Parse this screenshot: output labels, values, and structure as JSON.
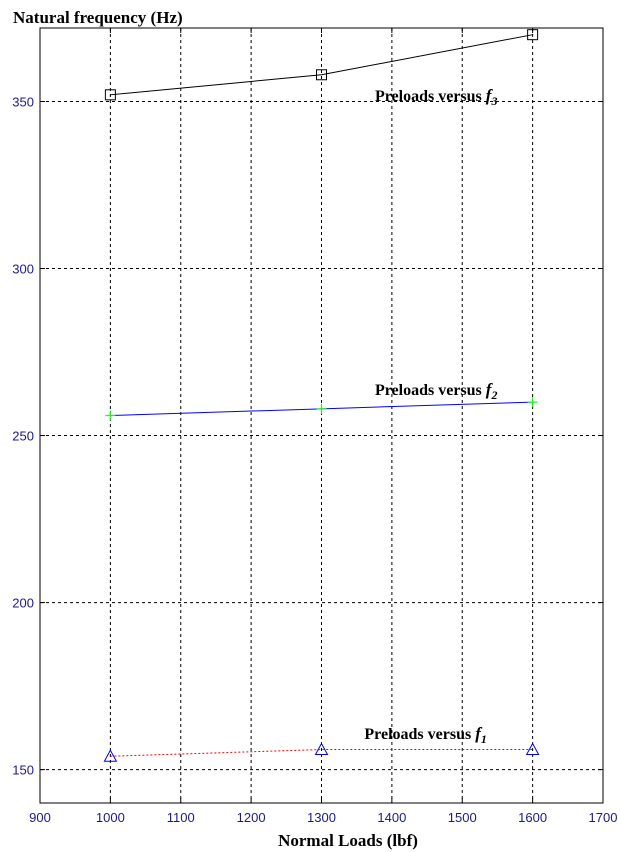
{
  "chart_data": {
    "type": "line",
    "ylabel": "Natural frequency (Hz)",
    "xlabel": "Normal Loads (lbf)",
    "xlim": [
      900,
      1700
    ],
    "ylim": [
      140,
      372
    ],
    "xticks": [
      900,
      1000,
      1100,
      1200,
      1300,
      1400,
      1500,
      1600,
      1700
    ],
    "yticks": [
      150,
      200,
      250,
      300,
      350
    ],
    "grid": true,
    "x": [
      1000,
      1300,
      1600
    ],
    "series": [
      {
        "values": [
          352,
          358,
          370
        ],
        "color": "#000000",
        "marker": "square",
        "line_style": "solid"
      },
      {
        "values": [
          256,
          258,
          260
        ],
        "color": "#0000ff",
        "marker": "plus",
        "marker_color": "#22ee22",
        "line_style": "solid"
      },
      {
        "values": [
          154,
          156,
          156
        ],
        "color": "#ff0000",
        "marker": "triangle",
        "marker_color": "#0000ff",
        "line_style": "dotted"
      }
    ],
    "annotations": [
      {
        "text": "Preloads versus ",
        "symbol": "f",
        "sub": "3",
        "x": 1550,
        "y": 352
      },
      {
        "text": "Preloads versus ",
        "symbol": "f",
        "sub": "2",
        "x": 1550,
        "y": 264
      },
      {
        "text": "Preloads versus ",
        "symbol": "f",
        "sub": "1",
        "x": 1535,
        "y": 161
      }
    ]
  }
}
